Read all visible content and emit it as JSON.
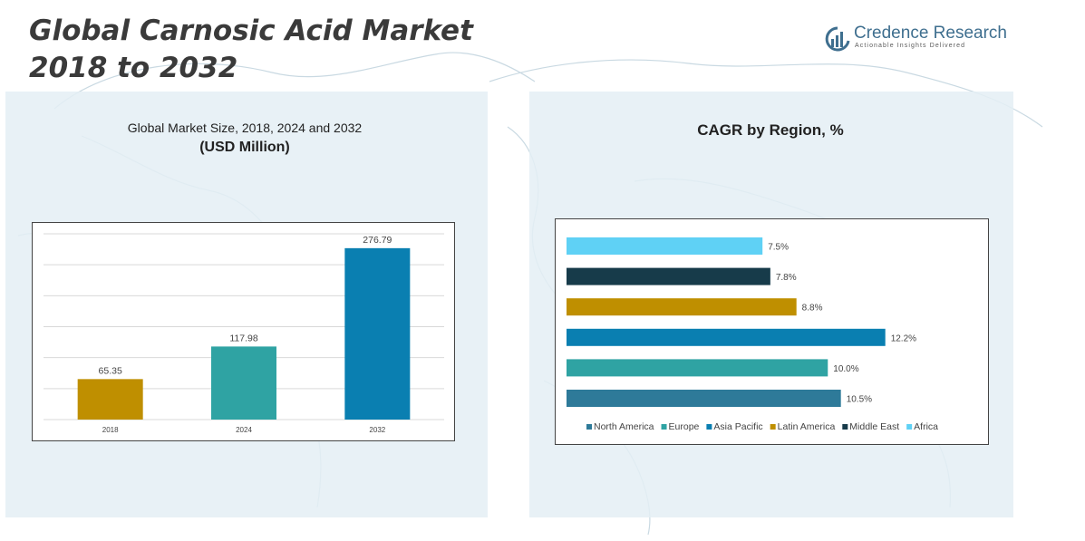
{
  "header": {
    "title_line1": "Global Carnosic Acid Market",
    "title_line2": "2018 to 2032"
  },
  "logo": {
    "name": "Credence Research",
    "tagline": "Actionable Insights Delivered"
  },
  "colors": {
    "panel_bg": "#e4eff4",
    "map_line": "#c9d9e2",
    "north_america": "#2e7a99",
    "europe": "#2fa3a3",
    "asia_pacific": "#0a7fb1",
    "latin_america": "#bf8f00",
    "middle_east": "#173b4a",
    "africa": "#5fd1f5"
  },
  "chart_data": [
    {
      "type": "bar",
      "title": "Global Market Size, 2018, 2024 and 2032",
      "subtitle": "(USD Million)",
      "categories": [
        "2018",
        "2024",
        "2032"
      ],
      "values": [
        65.35,
        117.98,
        276.79
      ],
      "value_labels": [
        "65.35",
        "117.98",
        "276.79"
      ],
      "bar_colors": [
        "#bf8f00",
        "#2fa3a3",
        "#0a7fb1"
      ],
      "ylim": [
        0,
        300
      ],
      "grid": true
    },
    {
      "type": "bar",
      "orientation": "horizontal",
      "title": "CAGR by Region, %",
      "categories": [
        "North America",
        "Europe",
        "Asia Pacific",
        "Latin America",
        "Middle East",
        "Africa"
      ],
      "values": [
        10.5,
        10.0,
        12.2,
        8.8,
        7.8,
        7.5
      ],
      "value_labels": [
        "10.5%",
        "10.0%",
        "12.2%",
        "8.8%",
        "7.8%",
        "7.5%"
      ],
      "bar_colors": [
        "#2e7a99",
        "#2fa3a3",
        "#0a7fb1",
        "#bf8f00",
        "#173b4a",
        "#5fd1f5"
      ],
      "xlim": [
        0,
        14.5
      ],
      "legend": "bottom",
      "grid": false
    }
  ]
}
